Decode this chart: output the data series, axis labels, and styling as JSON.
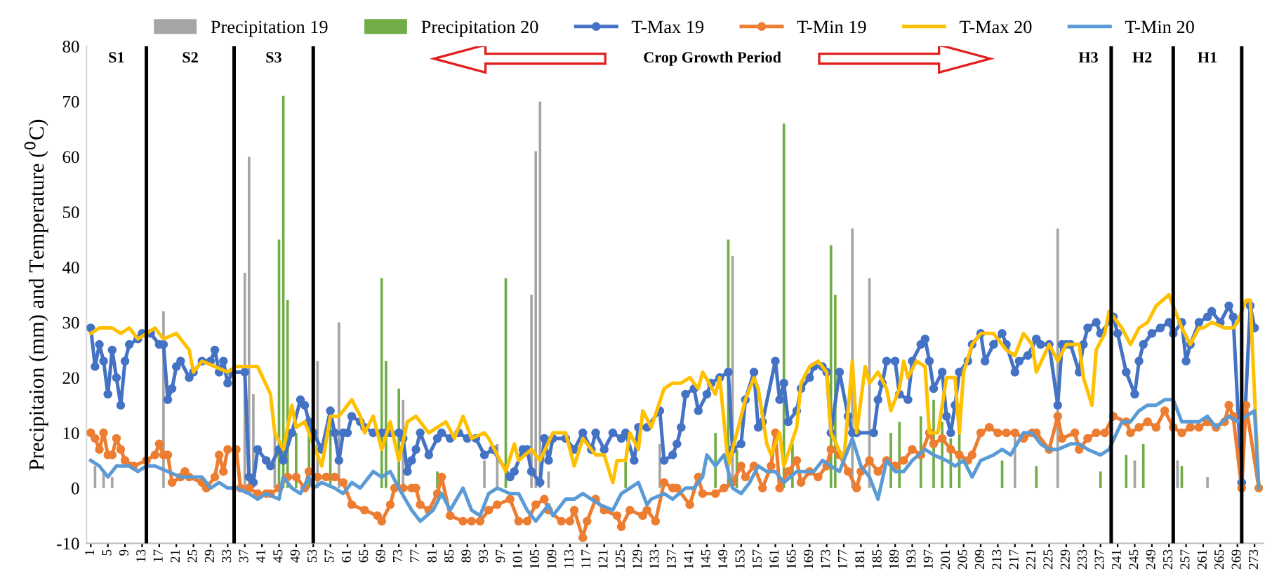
{
  "chart_data": {
    "type": "line",
    "ylabel": "Precipitaion (mm) and Temperature ($^{0}$C)",
    "ylim": [
      -10,
      80
    ],
    "yticks": [
      -10,
      0,
      10,
      20,
      30,
      40,
      50,
      60,
      70,
      80
    ],
    "xlim": [
      0,
      275
    ],
    "xticks": [
      1,
      5,
      9,
      13,
      17,
      21,
      25,
      29,
      33,
      37,
      41,
      45,
      49,
      53,
      57,
      61,
      65,
      69,
      73,
      77,
      81,
      85,
      89,
      93,
      97,
      101,
      105,
      109,
      113,
      117,
      121,
      125,
      129,
      133,
      137,
      141,
      145,
      149,
      153,
      157,
      161,
      165,
      169,
      173,
      177,
      181,
      185,
      189,
      193,
      197,
      201,
      205,
      209,
      213,
      217,
      221,
      225,
      229,
      233,
      237,
      241,
      245,
      249,
      253,
      257,
      261,
      265,
      269,
      273
    ],
    "legend": "top",
    "grid": false,
    "series": [
      {
        "name": "Precipitation 19",
        "type": "bar",
        "color": "#a5a5a5",
        "x": [
          2,
          4,
          6,
          18,
          37,
          38,
          39,
          44,
          54,
          55,
          59,
          74,
          93,
          96,
          104,
          105,
          106,
          108,
          134,
          151,
          160,
          179,
          183,
          217,
          227,
          245,
          255,
          262
        ],
        "values": [
          4,
          3,
          2,
          32,
          39,
          60,
          17,
          10,
          23,
          null,
          30,
          16,
          5,
          8,
          35,
          61,
          70,
          3,
          8,
          42,
          null,
          47,
          38,
          10,
          47,
          5,
          5,
          2
        ]
      },
      {
        "name": "Precipitation 20",
        "type": "bar",
        "color": "#70ad47",
        "x": [
          45,
          46,
          47,
          49,
          52,
          57,
          69,
          70,
          73,
          82,
          98,
          126,
          147,
          149,
          150,
          152,
          161,
          163,
          165,
          174,
          175,
          188,
          190,
          195,
          198,
          200,
          202,
          204,
          214,
          222,
          237,
          243,
          247,
          256
        ],
        "values": [
          45,
          71,
          34,
          10,
          13,
          12,
          38,
          23,
          18,
          3,
          38,
          5,
          10,
          null,
          45,
          7,
          null,
          66,
          8,
          44,
          35,
          10,
          12,
          13,
          16,
          12,
          9,
          10,
          5,
          4,
          3,
          6,
          8,
          4
        ]
      },
      {
        "name": "T-Max 19",
        "marker": "circle",
        "color": "#4472c4",
        "x": [
          1,
          2,
          3,
          4,
          5,
          6,
          7,
          8,
          9,
          10,
          12,
          13,
          15,
          17,
          18,
          19,
          20,
          21,
          22,
          24,
          25,
          27,
          29,
          30,
          31,
          32,
          33,
          34,
          37,
          38,
          39,
          40,
          42,
          43,
          45,
          46,
          48,
          50,
          51,
          52,
          53,
          55,
          57,
          58,
          59,
          60,
          61,
          62,
          64,
          65,
          67,
          69,
          70,
          71,
          73,
          74,
          75,
          76,
          77,
          78,
          80,
          82,
          83,
          85,
          87,
          89,
          91,
          93,
          95,
          99,
          100,
          102,
          103,
          104,
          106,
          107,
          108,
          109,
          112,
          114,
          116,
          118,
          119,
          121,
          123,
          125,
          126,
          128,
          129,
          131,
          134,
          135,
          137,
          138,
          139,
          140,
          142,
          143,
          145,
          146,
          148,
          150,
          151,
          153,
          154,
          156,
          157,
          158,
          161,
          162,
          163,
          164,
          166,
          167,
          169,
          170,
          172,
          173,
          174,
          176,
          178,
          179,
          180,
          184,
          185,
          186,
          187,
          189,
          190,
          192,
          193,
          195,
          196,
          197,
          198,
          200,
          201,
          202,
          203,
          204,
          206,
          207,
          209,
          210,
          212,
          214,
          215,
          217,
          218,
          220,
          222,
          223,
          225,
          227,
          228,
          229,
          230,
          232,
          233,
          234,
          236,
          237,
          240,
          241,
          243,
          245,
          246,
          247,
          249,
          251,
          253,
          254,
          256,
          257,
          258,
          260,
          262,
          263,
          265,
          267,
          268,
          270,
          272,
          273
        ],
        "values": [
          29,
          22,
          26,
          23,
          17,
          25,
          20,
          15,
          23,
          26,
          27,
          28,
          28,
          26,
          26,
          16,
          18,
          22,
          23,
          20,
          21,
          23,
          23,
          25,
          21,
          23,
          19,
          21,
          21,
          2,
          1,
          7,
          5,
          4,
          7,
          5,
          10,
          16,
          15,
          12,
          10,
          7,
          14,
          10,
          5,
          10,
          10,
          13,
          12,
          11,
          10,
          10,
          10,
          10,
          10,
          9,
          3,
          5,
          7,
          10,
          6,
          9,
          10,
          9,
          10,
          9,
          9,
          6,
          7,
          2,
          3,
          7,
          7,
          3,
          1,
          9,
          5,
          9,
          9,
          7,
          10,
          7,
          10,
          7,
          10,
          9,
          10,
          5,
          11,
          11,
          14,
          5,
          6,
          8,
          11,
          17,
          18,
          14,
          17,
          19,
          20,
          21,
          7,
          8,
          16,
          21,
          11,
          12,
          23,
          16,
          19,
          12,
          14,
          18,
          20,
          22,
          22,
          21,
          10,
          21,
          13,
          10,
          10,
          10,
          16,
          19,
          23,
          23,
          17,
          16,
          23,
          26,
          27,
          23,
          18,
          21,
          13,
          10,
          15,
          21,
          23,
          26,
          28,
          23,
          26,
          28,
          26,
          21,
          23,
          24,
          27,
          26,
          26,
          15,
          26,
          26,
          26,
          21,
          26,
          29,
          30,
          28,
          31,
          28,
          21,
          17,
          23,
          26,
          28,
          29,
          30,
          28,
          30,
          23,
          26,
          30,
          31,
          32,
          30,
          33,
          31,
          1,
          33,
          29
        ]
      },
      {
        "name": "T-Min 19",
        "marker": "circle",
        "color": "#ed7d31",
        "x": [
          1,
          2,
          3,
          4,
          5,
          6,
          7,
          8,
          9,
          11,
          14,
          16,
          17,
          18,
          19,
          20,
          22,
          23,
          24,
          27,
          28,
          30,
          31,
          32,
          33,
          35,
          36,
          38,
          40,
          42,
          43,
          45,
          47,
          49,
          51,
          52,
          54,
          56,
          58,
          60,
          62,
          65,
          68,
          69,
          71,
          72,
          74,
          76,
          77,
          78,
          80,
          82,
          83,
          85,
          88,
          90,
          92,
          94,
          96,
          99,
          101,
          103,
          105,
          107,
          108,
          111,
          113,
          114,
          116,
          117,
          119,
          121,
          124,
          125,
          127,
          130,
          131,
          133,
          135,
          137,
          138,
          141,
          143,
          144,
          147,
          149,
          151,
          153,
          154,
          156,
          158,
          160,
          161,
          162,
          164,
          166,
          167,
          169,
          171,
          173,
          174,
          176,
          178,
          180,
          181,
          183,
          185,
          187,
          189,
          191,
          193,
          195,
          197,
          198,
          200,
          202,
          204,
          206,
          207,
          209,
          211,
          213,
          215,
          217,
          219,
          221,
          222,
          225,
          227,
          228,
          231,
          232,
          234,
          236,
          238,
          240,
          243,
          244,
          246,
          248,
          250,
          252,
          254,
          256,
          258,
          260,
          262,
          264,
          266,
          267,
          268,
          270,
          271,
          274
        ],
        "values": [
          10,
          9,
          7,
          10,
          6,
          6,
          9,
          7,
          5,
          4,
          5,
          6,
          8,
          6,
          6,
          1,
          2,
          3,
          2,
          1,
          0,
          2,
          6,
          3,
          7,
          7,
          0,
          0,
          -1,
          -1,
          -1,
          0,
          2,
          2,
          0,
          3,
          2,
          2,
          2,
          1,
          -3,
          -4,
          -5,
          -6,
          -3,
          0,
          0,
          0,
          0,
          -3,
          -4,
          -1,
          2,
          -5,
          -6,
          -6,
          -6,
          -4,
          -3,
          -2,
          -6,
          -6,
          -3,
          -2,
          -4,
          -6,
          -6,
          -4,
          -9,
          -6,
          -2,
          -4,
          -5,
          -7,
          -4,
          -5,
          -4,
          -6,
          1,
          0,
          0,
          -3,
          2,
          -1,
          -1,
          0,
          1,
          4,
          2,
          4,
          0,
          4,
          10,
          0,
          3,
          5,
          1,
          3,
          2,
          4,
          7,
          6,
          3,
          0,
          3,
          5,
          3,
          5,
          4,
          5,
          7,
          6,
          10,
          8,
          9,
          7,
          6,
          5,
          6,
          10,
          11,
          10,
          10,
          10,
          9,
          10,
          10,
          7,
          13,
          9,
          10,
          7,
          9,
          10,
          10,
          13,
          12,
          10,
          11,
          12,
          11,
          14,
          11,
          10,
          11,
          11,
          12,
          11,
          12,
          15,
          13,
          0,
          15,
          0
        ]
      },
      {
        "name": "T-Max 20",
        "marker": "none",
        "color": "#ffc000",
        "x": [
          1,
          3,
          6,
          8,
          10,
          12,
          16,
          18,
          21,
          24,
          25,
          27,
          30,
          33,
          35,
          40,
          43,
          44,
          46,
          48,
          49,
          51,
          53,
          55,
          57,
          59,
          62,
          64,
          65,
          67,
          69,
          71,
          73,
          75,
          77,
          80,
          84,
          86,
          88,
          90,
          93,
          94,
          98,
          100,
          101,
          104,
          106,
          109,
          112,
          114,
          116,
          119,
          121,
          123,
          124,
          126,
          127,
          129,
          130,
          132,
          135,
          137,
          139,
          141,
          143,
          144,
          147,
          148,
          150,
          152,
          154,
          156,
          157,
          159,
          160,
          162,
          163,
          166,
          167,
          169,
          171,
          173,
          174,
          177,
          179,
          180,
          182,
          183,
          185,
          187,
          188,
          190,
          191,
          192,
          194,
          196,
          197,
          199,
          201,
          203,
          204,
          205,
          207,
          209,
          212,
          215,
          217,
          219,
          221,
          222,
          225,
          227,
          229,
          232,
          233,
          235,
          236,
          238,
          239,
          242,
          244,
          246,
          248,
          250,
          253,
          255,
          256,
          258,
          260,
          261,
          263,
          266,
          268,
          269,
          271,
          272,
          274
        ],
        "values": [
          28,
          29,
          29,
          28,
          29,
          27,
          29,
          27,
          28,
          25,
          21,
          23,
          22,
          21,
          22,
          22,
          17,
          10,
          7,
          15,
          11,
          12,
          8,
          4,
          13,
          13,
          16,
          13,
          10,
          13,
          7,
          12,
          5,
          12,
          13,
          10,
          12,
          9,
          13,
          9,
          10,
          9,
          3,
          8,
          5,
          7,
          5,
          10,
          10,
          4,
          9,
          6,
          6,
          1,
          5,
          5,
          10,
          7,
          14,
          11,
          18,
          19,
          19,
          20,
          18,
          21,
          17,
          20,
          4,
          10,
          16,
          20,
          18,
          8,
          6,
          10,
          4,
          11,
          19,
          22,
          23,
          21,
          10,
          5,
          23,
          10,
          22,
          19,
          21,
          18,
          14,
          18,
          23,
          20,
          23,
          22,
          10,
          10,
          20,
          20,
          10,
          21,
          26,
          28,
          28,
          25,
          24,
          28,
          26,
          21,
          26,
          23,
          26,
          26,
          20,
          15,
          25,
          28,
          32,
          29,
          26,
          29,
          30,
          33,
          35,
          31,
          29,
          26,
          29,
          29,
          30,
          29,
          29,
          30,
          34,
          34,
          0
        ]
      },
      {
        "name": "T-Min 20",
        "marker": "none",
        "color": "#5b9bd5",
        "x": [
          1,
          3,
          5,
          7,
          10,
          12,
          14,
          16,
          19,
          22,
          24,
          27,
          29,
          31,
          33,
          35,
          38,
          40,
          42,
          45,
          46,
          48,
          50,
          52,
          53,
          55,
          58,
          60,
          62,
          64,
          67,
          69,
          71,
          73,
          76,
          78,
          81,
          83,
          85,
          88,
          90,
          92,
          94,
          96,
          99,
          101,
          103,
          105,
          108,
          109,
          112,
          114,
          116,
          118,
          120,
          123,
          125,
          127,
          129,
          131,
          132,
          135,
          137,
          140,
          142,
          144,
          145,
          147,
          149,
          151,
          153,
          155,
          157,
          159,
          161,
          163,
          166,
          168,
          170,
          172,
          174,
          176,
          179,
          181,
          183,
          185,
          187,
          189,
          191,
          193,
          196,
          198,
          201,
          203,
          205,
          207,
          209,
          212,
          214,
          216,
          219,
          221,
          223,
          225,
          227,
          230,
          232,
          234,
          237,
          239,
          242,
          244,
          246,
          248,
          250,
          252,
          254,
          256,
          258,
          260,
          262,
          264,
          267,
          269,
          271,
          273,
          274
        ],
        "values": [
          5,
          4,
          2,
          4,
          4,
          3,
          4,
          4,
          3,
          2,
          2,
          2,
          0,
          1,
          0,
          0,
          -1,
          -2,
          -1,
          -2,
          2,
          0,
          -1,
          2,
          0,
          1,
          0,
          -1,
          1,
          0,
          3,
          2,
          3,
          0,
          -4,
          -6,
          -4,
          -1,
          -4,
          0,
          -4,
          -5,
          -1,
          0,
          -1,
          -1,
          -4,
          -6,
          -3,
          -5,
          -2,
          -2,
          -1,
          -2,
          -3,
          -4,
          -1,
          0,
          1,
          -3,
          -2,
          -1,
          -2,
          0,
          0,
          2,
          6,
          4,
          6,
          0,
          -1,
          1,
          4,
          3,
          3,
          1,
          3,
          3,
          3,
          5,
          4,
          3,
          9,
          4,
          2,
          -2,
          5,
          3,
          3,
          5,
          7,
          6,
          5,
          4,
          5,
          2,
          5,
          6,
          7,
          6,
          10,
          10,
          8,
          7,
          7,
          8,
          8,
          7,
          6,
          7,
          12,
          12,
          14,
          15,
          15,
          16,
          16,
          12,
          12,
          12,
          13,
          11,
          13,
          12,
          13,
          14,
          0
        ]
      }
    ],
    "ref_lines": [
      {
        "axis": "x",
        "value": 14,
        "color": "#000000"
      },
      {
        "axis": "x",
        "value": 34.5,
        "color": "#000000"
      },
      {
        "axis": "x",
        "value": 53,
        "color": "#000000"
      },
      {
        "axis": "x",
        "value": 239.5,
        "color": "#000000"
      },
      {
        "axis": "x",
        "value": 254,
        "color": "#000000"
      },
      {
        "axis": "x",
        "value": 270,
        "color": "#000000"
      }
    ],
    "annotations": [
      "S1",
      "S2",
      "S3",
      "Crop Growth Period",
      "H3",
      "H2",
      "H1"
    ]
  }
}
